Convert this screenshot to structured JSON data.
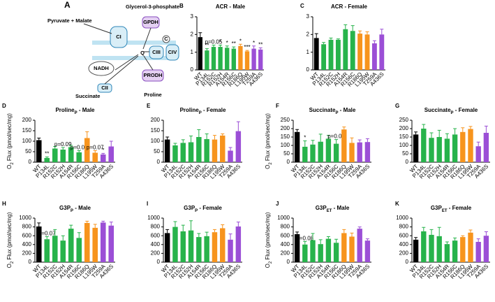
{
  "diagram": {
    "label": "A",
    "pyruvate": "Pyruvate + Malate",
    "g3p": "Glycerol-3-phosphate",
    "gpdh": "GPDH",
    "ci": "CI",
    "nadh": "NADH",
    "q": "Q",
    "ciii": "CIII",
    "c": "C",
    "civ": "CIV",
    "cii": "CII",
    "succinate": "Succinate",
    "prodh": "PRODH",
    "proline": "Proline"
  },
  "bar_colors": [
    "#000000",
    "#27b34b",
    "#27b34b",
    "#27b34b",
    "#27b34b",
    "#27b34b",
    "#f7941d",
    "#f7941d",
    "#9b4fd6",
    "#9b4fd6"
  ],
  "chart_data": [
    {
      "type": "bar",
      "label": "B",
      "title": [
        "ACR - Male"
      ],
      "categories": [
        "WT",
        "P134L",
        "R152C",
        "R152H",
        "A154R",
        "R156C",
        "R186Q",
        "L195W",
        "T259A",
        "A436S"
      ],
      "values": [
        1.85,
        1.1,
        1.3,
        1.3,
        1.25,
        1.2,
        1.35,
        1.05,
        1.2,
        1.15
      ],
      "errors": [
        0.25,
        0.1,
        0.1,
        0.1,
        0.1,
        0.1,
        0.1,
        0.05,
        0.15,
        0.1
      ],
      "annotations": [
        null,
        "**",
        "p=0.05",
        "*",
        "*",
        "**",
        "*",
        "***",
        "*",
        "**"
      ],
      "ylim": [
        0,
        3
      ],
      "yticks": [
        0,
        1,
        2,
        3
      ]
    },
    {
      "type": "bar",
      "label": "C",
      "title": [
        "ACR - Female"
      ],
      "categories": [
        "WT",
        "P134L",
        "R152C",
        "R152H",
        "A154R",
        "R156C",
        "R186Q",
        "L195W",
        "T259A",
        "A436S"
      ],
      "values": [
        1.8,
        1.45,
        1.7,
        1.7,
        2.3,
        2.2,
        2.05,
        2.0,
        1.5,
        2.0
      ],
      "errors": [
        0.25,
        0.1,
        0.1,
        0.05,
        0.25,
        0.3,
        0.15,
        0.15,
        0.15,
        0.3
      ],
      "ylim": [
        0,
        3
      ],
      "yticks": [
        0,
        1,
        2,
        3
      ]
    },
    {
      "type": "bar",
      "label": "D",
      "title": [
        "Proline",
        "P",
        " - Male"
      ],
      "ylabel": [
        "O",
        "2",
        " Flux (pmol/sec/mg)"
      ],
      "categories": [
        "WT",
        "P134L",
        "R152C",
        "R152H",
        "A154R",
        "R156C",
        "R186Q",
        "L195W",
        "T259A",
        "A436S"
      ],
      "values": [
        105,
        20,
        65,
        60,
        72,
        47,
        115,
        45,
        37,
        75
      ],
      "errors": [
        10,
        5,
        10,
        10,
        8,
        8,
        30,
        10,
        5,
        25
      ],
      "annotations": [
        null,
        "**",
        null,
        "p=0.09",
        null,
        "p=0.06",
        null,
        "p=0.07",
        "*",
        null
      ],
      "ylim": [
        0,
        200
      ],
      "yticks": [
        0,
        50,
        100,
        150,
        200
      ]
    },
    {
      "type": "bar",
      "label": "E",
      "title": [
        "Proline",
        "P",
        " - Female"
      ],
      "categories": [
        "WT",
        "P134L",
        "R152C",
        "R152H",
        "A154R",
        "R156C",
        "R186Q",
        "L195W",
        "T259A",
        "A436S"
      ],
      "values": [
        108,
        80,
        92,
        95,
        120,
        110,
        108,
        127,
        55,
        148
      ],
      "errors": [
        12,
        10,
        15,
        30,
        35,
        25,
        20,
        8,
        15,
        45
      ],
      "ylim": [
        0,
        200
      ],
      "yticks": [
        0,
        50,
        100,
        150,
        200
      ]
    },
    {
      "type": "bar",
      "label": "F",
      "title": [
        "Succinate",
        "P",
        " - Male"
      ],
      "ylabel": [
        "O",
        "2",
        " Flux (pmol/sec/mg)"
      ],
      "categories": [
        "WT",
        "P134L",
        "R152C",
        "R152H",
        "A154R",
        "R156C",
        "R186Q",
        "L195W",
        "T259A",
        "A436S"
      ],
      "values": [
        180,
        92,
        105,
        122,
        140,
        110,
        195,
        115,
        118,
        120
      ],
      "errors": [
        15,
        35,
        25,
        45,
        20,
        25,
        15,
        30,
        15,
        20
      ],
      "annotations": [
        null,
        "*",
        null,
        null,
        null,
        "p=0.09",
        null,
        null,
        null,
        null
      ],
      "ylim": [
        0,
        250
      ],
      "yticks": [
        0,
        50,
        100,
        150,
        200,
        250
      ]
    },
    {
      "type": "bar",
      "label": "G",
      "title": [
        "Succinate",
        "P",
        " - Female"
      ],
      "categories": [
        "WT",
        "P134L",
        "R152C",
        "R152H",
        "A154R",
        "R156C",
        "R186Q",
        "L195W",
        "T259A",
        "A436S"
      ],
      "values": [
        165,
        200,
        145,
        150,
        140,
        165,
        180,
        198,
        95,
        175
      ],
      "errors": [
        15,
        25,
        30,
        40,
        30,
        35,
        25,
        15,
        25,
        40
      ],
      "ylim": [
        0,
        250
      ],
      "yticks": [
        0,
        50,
        100,
        150,
        200,
        250
      ]
    },
    {
      "type": "bar",
      "label": "H",
      "title": [
        "G3P",
        "P",
        " - Male"
      ],
      "ylabel": [
        "O",
        "2",
        " Flux (pmol/sec/mg)"
      ],
      "categories": [
        "WT",
        "P134L",
        "R152C",
        "R152H",
        "A154R",
        "R156C",
        "R186Q",
        "L195W",
        "T259A",
        "A436S"
      ],
      "values": [
        810,
        520,
        600,
        490,
        760,
        550,
        890,
        780,
        900,
        830
      ],
      "errors": [
        80,
        60,
        140,
        110,
        80,
        120,
        40,
        80,
        30,
        80
      ],
      "annotations": [
        null,
        "p=0.07",
        null,
        null,
        null,
        null,
        null,
        null,
        null,
        null
      ],
      "ylim": [
        0,
        1000
      ],
      "yticks": [
        0,
        200,
        400,
        600,
        800,
        1000
      ]
    },
    {
      "type": "bar",
      "label": "I",
      "title": [
        "G3P",
        "P",
        " - Female"
      ],
      "categories": [
        "WT",
        "P134L",
        "R152C",
        "R152H",
        "A154R",
        "R156C",
        "R186Q",
        "L195W",
        "T259A",
        "A436S"
      ],
      "values": [
        660,
        800,
        700,
        720,
        570,
        590,
        680,
        770,
        510,
        810
      ],
      "errors": [
        80,
        120,
        140,
        220,
        80,
        90,
        60,
        80,
        130,
        100
      ],
      "ylim": [
        0,
        1000
      ],
      "yticks": [
        0,
        200,
        400,
        600,
        800,
        1000
      ]
    },
    {
      "type": "bar",
      "label": "J",
      "title": [
        "G3P",
        "ET",
        " - Male"
      ],
      "ylabel": [
        "O",
        "2",
        " Flux (pmol/sec/mg)"
      ],
      "categories": [
        "WT",
        "P134L",
        "R152C",
        "R152H",
        "A154R",
        "R156C",
        "R186Q",
        "L195W",
        "T259A",
        "A436S"
      ],
      "values": [
        635,
        400,
        500,
        410,
        530,
        440,
        660,
        580,
        760,
        490
      ],
      "errors": [
        50,
        70,
        150,
        100,
        50,
        80,
        80,
        80,
        40,
        40
      ],
      "annotations": [
        null,
        "p=0.08",
        null,
        null,
        null,
        null,
        null,
        null,
        null,
        null
      ],
      "ylim": [
        0,
        1000
      ],
      "yticks": [
        0,
        200,
        400,
        600,
        800,
        1000
      ]
    },
    {
      "type": "bar",
      "label": "K",
      "title": [
        "G3P",
        "ET",
        " - Female"
      ],
      "categories": [
        "WT",
        "P134L",
        "R152C",
        "R152H",
        "A154R",
        "R156C",
        "R186Q",
        "L195W",
        "T259A",
        "A436S"
      ],
      "values": [
        510,
        700,
        620,
        590,
        410,
        490,
        570,
        670,
        460,
        600
      ],
      "errors": [
        50,
        90,
        120,
        200,
        50,
        60,
        30,
        60,
        70,
        90
      ],
      "ylim": [
        0,
        1000
      ],
      "yticks": [
        0,
        200,
        400,
        600,
        800,
        1000
      ]
    }
  ]
}
